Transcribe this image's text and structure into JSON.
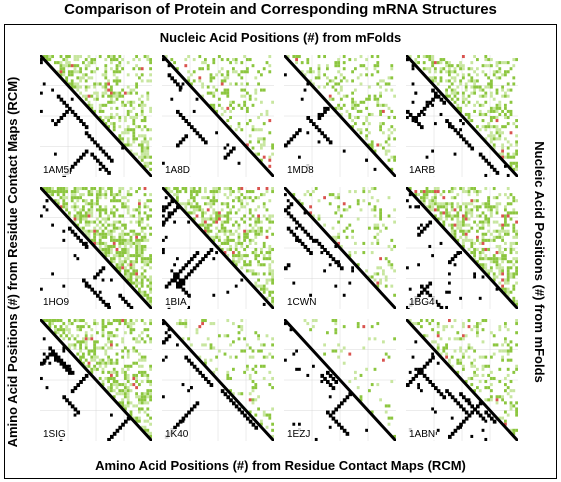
{
  "title": "Comparison of Protein and Corresponding mRNA Structures",
  "axes": {
    "top": "Nucleic Acid Positions (#) from mFolds",
    "bottom": "Amino Acid Positions (#) from Residue Contact Maps (RCM)",
    "left": "Amino Acid Positions (#) from Residue Contact Maps (RCM)",
    "right": "Nucleic Acid Positions (#) from mFolds"
  },
  "panels": [
    {
      "id": "1AM5",
      "density": 0.55,
      "seed": 11
    },
    {
      "id": "1A8D",
      "density": 0.25,
      "seed": 23
    },
    {
      "id": "1MD8",
      "density": 0.3,
      "seed": 37
    },
    {
      "id": "1ARB",
      "density": 0.45,
      "seed": 41
    },
    {
      "id": "1HO9",
      "density": 0.7,
      "seed": 53
    },
    {
      "id": "1BIA",
      "density": 0.55,
      "seed": 67
    },
    {
      "id": "1CWN",
      "density": 0.2,
      "seed": 71
    },
    {
      "id": "1BG4",
      "density": 0.6,
      "seed": 83
    },
    {
      "id": "1SIG",
      "density": 0.55,
      "seed": 97
    },
    {
      "id": "1K40",
      "density": 0.2,
      "seed": 101
    },
    {
      "id": "1EZJ",
      "density": 0.1,
      "seed": 113
    },
    {
      "id": "1ABN",
      "density": 0.3,
      "seed": 127
    }
  ],
  "colors": {
    "upper_contacts": "#8cc63f",
    "upper_contacts_light": "#c8e6a0",
    "upper_accent": "#d9534f",
    "lower_pairs": "#000000",
    "diagonal": "#000000",
    "gridline": "#d8d8d8"
  }
}
